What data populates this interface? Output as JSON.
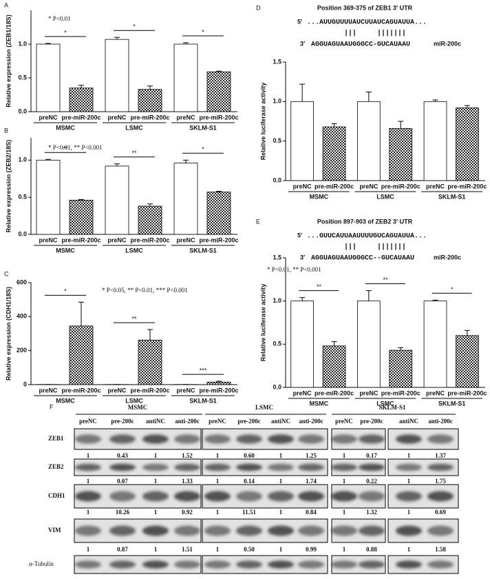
{
  "chart_data": [
    {
      "type": "bar",
      "panel": "A",
      "note": "* P<0.01",
      "y_label": "Relative expression (ZEB1/18S)",
      "categories": [
        "MSMC",
        "LSMC",
        "SKLM-S1"
      ],
      "series": [
        {
          "name": "preNC",
          "color": "#ffffff",
          "values": [
            1.0,
            1.07,
            1.0
          ],
          "errors": [
            0.01,
            0.03,
            0.02
          ]
        },
        {
          "name": "pre-miR-200c",
          "color": "#444444",
          "pattern": "checkered",
          "values": [
            0.35,
            0.33,
            0.59
          ],
          "errors": [
            0.04,
            0.05,
            0.01
          ]
        }
      ],
      "significance": [
        "*",
        "*",
        "*"
      ],
      "ylim": [
        0,
        1.5
      ],
      "yticks": [
        {
          "value": 0,
          "label": "0.0"
        },
        0.5,
        {
          "value": 1,
          "label": "1.0"
        }
      ]
    },
    {
      "type": "bar",
      "panel": "B",
      "note": "* P<0.01, ** P<0.001",
      "y_label": "Relative expression (ZEB2/18S)",
      "categories": [
        "MSMC",
        "LSMC",
        "SKLM-S1"
      ],
      "series": [
        {
          "name": "preNC",
          "color": "#ffffff",
          "values": [
            1.0,
            0.92,
            0.96
          ],
          "errors": [
            0.01,
            0.03,
            0.04
          ]
        },
        {
          "name": "pre-miR-200c",
          "color": "#444444",
          "pattern": "checkered",
          "values": [
            0.46,
            0.38,
            0.57
          ],
          "errors": [
            0.01,
            0.03,
            0.01
          ]
        }
      ],
      "significance": [
        "**",
        "**",
        "*"
      ],
      "ylim": [
        0,
        1.3
      ],
      "yticks": [
        {
          "value": 0,
          "label": "0.0"
        },
        0.5,
        {
          "value": 1,
          "label": "1.0"
        }
      ]
    },
    {
      "type": "bar",
      "panel": "C",
      "note": "* P<0.05, ** P<0.01, *** P<0.001",
      "y_label": "Relative expression (CDH1/18S)",
      "categories": [
        "MSMC",
        "LSMC",
        "SKLM-S1"
      ],
      "series": [
        {
          "name": "preNC",
          "color": "#ffffff",
          "values": [
            1,
            1,
            1
          ],
          "errors": [
            0,
            0,
            0
          ]
        },
        {
          "name": "pre-miR-200c",
          "color": "#444444",
          "pattern": "checkered",
          "values": [
            345,
            262,
            15
          ],
          "errors": [
            140,
            62,
            5
          ]
        }
      ],
      "significance": [
        "*",
        "**",
        "***"
      ],
      "ylim": [
        0,
        600
      ],
      "yticks": [
        0,
        200,
        400,
        600
      ]
    },
    {
      "type": "bar",
      "panel": "D",
      "title": "Position 369-375 of ZEB1 3′ UTR",
      "y_label": "Relative luciferase activity",
      "alignment": {
        "end5": "5′",
        "target": "...AUUGUUUUAUCUUAUCAGUAUUA...",
        "pairs": "|||     |||||||",
        "end3": "3′",
        "mirna_seq": "AGGUAGUAAUGGGCC-GUCAUAAU",
        "mirna_name": "miR-200c"
      },
      "categories": [
        "MSMC",
        "LSMC",
        "SKLM-S1"
      ],
      "series": [
        {
          "name": "preNC",
          "color": "#ffffff",
          "values": [
            1.0,
            1.0,
            1.0
          ],
          "errors": [
            0.22,
            0.12,
            0.02
          ]
        },
        {
          "name": "pre-miR-200c",
          "color": "#444444",
          "pattern": "checkered",
          "values": [
            0.68,
            0.66,
            0.92
          ],
          "errors": [
            0.04,
            0.09,
            0.03
          ]
        }
      ],
      "ylim": [
        0,
        1.5
      ],
      "yticks": [
        {
          "value": 0,
          "label": "0.0"
        },
        0.5,
        {
          "value": 1,
          "label": "1.0"
        },
        1.5
      ]
    },
    {
      "type": "bar",
      "panel": "E",
      "title": "Position 897-903 of ZEB2 3′ UTR",
      "note": "* P<0.01, ** P<0.001",
      "y_label": "Relative luciferase activity",
      "alignment": {
        "end5": "5′",
        "target": "...GUUCAUUAAUUUUGUCAGUAUUA...",
        "pairs": "|||     |||||||",
        "end3": "3′",
        "mirna_seq": "AGGUAGUAAUGGGCC--GUCAUAAU",
        "mirna_name": "miR-200c"
      },
      "categories": [
        "MSMC",
        "LSMC",
        "SKLM-S1"
      ],
      "series": [
        {
          "name": "preNC",
          "color": "#ffffff",
          "values": [
            1.0,
            1.0,
            1.0
          ],
          "errors": [
            0.04,
            0.12,
            0.01
          ]
        },
        {
          "name": "pre-miR-200c",
          "color": "#444444",
          "pattern": "checkered",
          "values": [
            0.48,
            0.43,
            0.6
          ],
          "errors": [
            0.05,
            0.03,
            0.06
          ]
        }
      ],
      "significance": [
        "**",
        "**",
        "*"
      ],
      "ylim": [
        0,
        1.5
      ],
      "yticks": [
        {
          "value": 0,
          "label": "0.0"
        },
        0.5,
        {
          "value": 1,
          "label": "1.0"
        },
        1.5
      ]
    }
  ],
  "panel_f": {
    "label": "F",
    "groups": [
      {
        "name": "MSMC",
        "lanes": [
          "preNC",
          "pre-200c",
          "antiNC",
          "anti-200c"
        ]
      },
      {
        "name": "LSMC",
        "lanes": [
          "preNC",
          "pre-200c",
          "antiNC",
          "anti-200c"
        ]
      },
      {
        "name": "SKLM-S1",
        "lanes": [
          "preNC",
          "pre-200c",
          "antiNC",
          "anti-200c"
        ]
      }
    ],
    "rows": [
      {
        "name": "ZEB1",
        "values": [
          [
            "1",
            "0.43",
            "1",
            "1.52"
          ],
          [
            "1",
            "0.60",
            "1",
            "1.25"
          ],
          [
            "1",
            "0.17",
            "1",
            "1.37"
          ]
        ]
      },
      {
        "name": "ZEB2",
        "values": [
          [
            "1",
            "0.07",
            "1",
            "1.33"
          ],
          [
            "1",
            "0.14",
            "1",
            "1.74"
          ],
          [
            "1",
            "0.22",
            "1",
            "1.75"
          ]
        ]
      },
      {
        "name": "CDH1",
        "values": [
          [
            "1",
            "10.26",
            "1",
            "0.92"
          ],
          [
            "1",
            "11.51",
            "1",
            "0.84"
          ],
          [
            "1",
            "1.32",
            "1",
            "0.69"
          ]
        ]
      },
      {
        "name": "VIM",
        "values": [
          [
            "1",
            "0.87",
            "1",
            "1.51"
          ],
          [
            "1",
            "0.50",
            "1",
            "0.99"
          ],
          [
            "1",
            "0.88",
            "1",
            "1.58"
          ]
        ]
      }
    ],
    "loading": "α-Tubulin"
  }
}
